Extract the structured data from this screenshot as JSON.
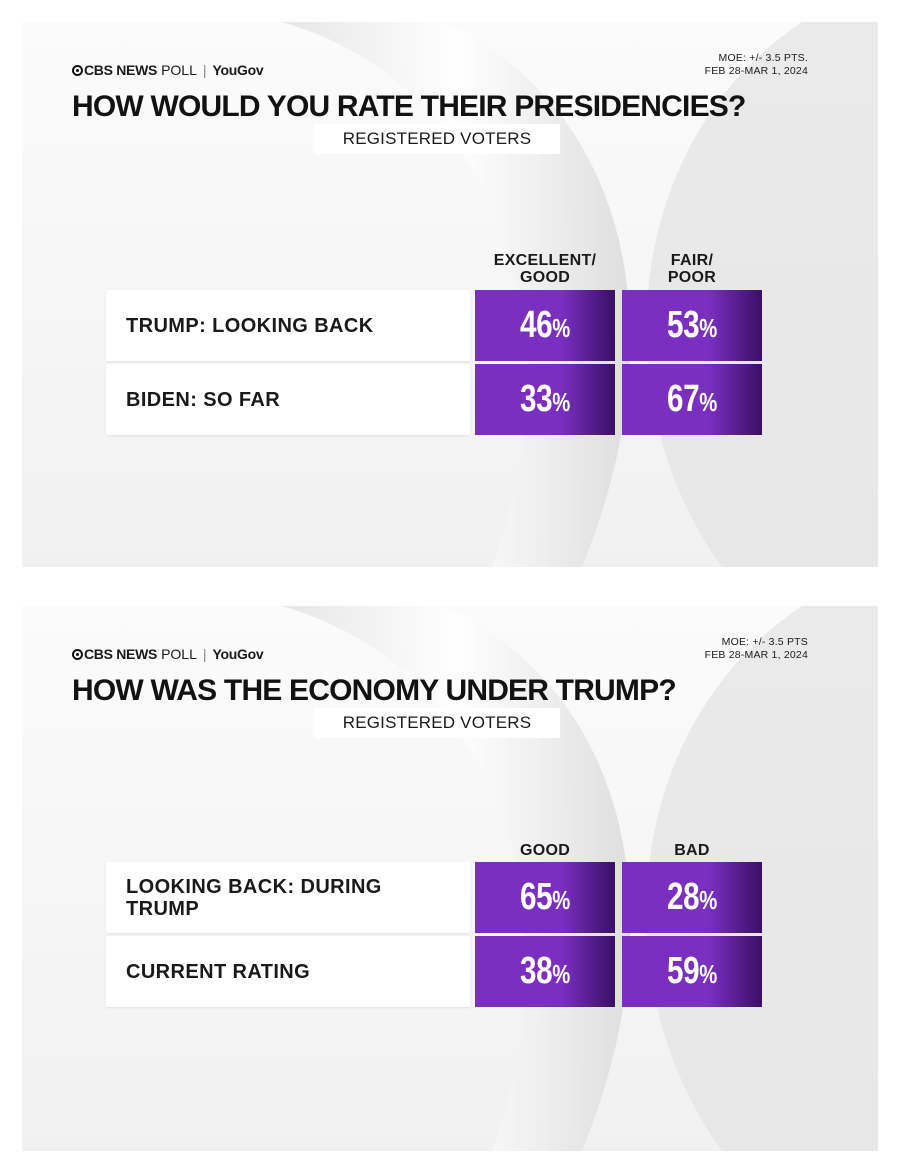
{
  "colors": {
    "cell_purple": "#7a2fc0",
    "cell_dark": "#3a0f66",
    "text_dark": "#1a1a1a"
  },
  "chart_data": [
    {
      "type": "table",
      "brand": {
        "cbs": "CBS NEWS",
        "poll": "POLL",
        "yougov": "YouGov"
      },
      "moe": {
        "line1": "MOE: +/- 3.5 PTS.",
        "line2": "FEB 28-MAR 1, 2024"
      },
      "title": "HOW WOULD YOU RATE THEIR PRESIDENCIES?",
      "subtitle": "REGISTERED VOTERS",
      "columns": [
        "EXCELLENT/\nGOOD",
        "FAIR/\nPOOR"
      ],
      "rows": [
        {
          "label": "TRUMP: LOOKING BACK",
          "values": [
            46,
            53
          ],
          "display": [
            "46",
            "53"
          ]
        },
        {
          "label": "BIDEN: SO FAR",
          "values": [
            33,
            67
          ],
          "display": [
            "33",
            "67"
          ]
        }
      ]
    },
    {
      "type": "table",
      "brand": {
        "cbs": "CBS NEWS",
        "poll": "POLL",
        "yougov": "YouGov"
      },
      "moe": {
        "line1": "MOE: +/- 3.5 PTS",
        "line2": "FEB 28-MAR 1, 2024"
      },
      "title": "HOW WAS THE ECONOMY UNDER TRUMP?",
      "subtitle": "REGISTERED VOTERS",
      "columns": [
        "GOOD",
        "BAD"
      ],
      "rows": [
        {
          "label": "LOOKING BACK: DURING TRUMP",
          "values": [
            65,
            28
          ],
          "display": [
            "65",
            "28"
          ]
        },
        {
          "label": "CURRENT RATING",
          "values": [
            38,
            59
          ],
          "display": [
            "38",
            "59"
          ]
        }
      ]
    }
  ]
}
